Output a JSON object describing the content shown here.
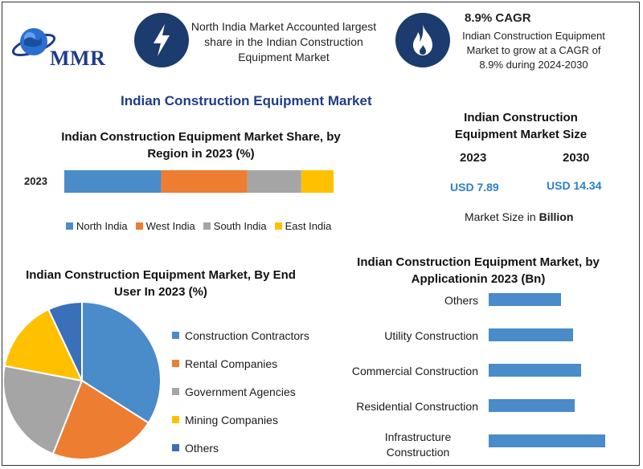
{
  "brand": {
    "logo_text": "MMR"
  },
  "header": {
    "region_text": "North India Market Accounted largest share in the Indian Construction Equipment Market",
    "cagr_title": "8.9% CAGR",
    "cagr_text": "Indian Construction Equipment Market to grow at a CAGR of 8.9% during 2024-2030",
    "icons": [
      "lightning-icon",
      "flame-icon"
    ]
  },
  "main_title": "Indian Construction Equipment Market",
  "market_size": {
    "title": "Indian Construction Equipment Market Size",
    "years": [
      "2023",
      "2030"
    ],
    "values": [
      "USD 7.89",
      "USD 14.34"
    ],
    "footnote_prefix": "Market Size in ",
    "footnote_unit": "Billion"
  },
  "colors": {
    "blue": "#4a8bc9",
    "orange": "#ed7d31",
    "gray": "#a5a5a5",
    "yellow": "#ffc000",
    "darkblue": "#3a6fb9",
    "bar": "#4a8bc9"
  },
  "chart_data": [
    {
      "type": "bar",
      "stacked": true,
      "orientation": "horizontal",
      "title": "Indian Construction Equipment Market Share, by Region in 2023 (%)",
      "categories": [
        "2023"
      ],
      "series": [
        {
          "name": "North India",
          "values": [
            36
          ]
        },
        {
          "name": "West India",
          "values": [
            32
          ]
        },
        {
          "name": "South India",
          "values": [
            20
          ]
        },
        {
          "name": "East India",
          "values": [
            12
          ]
        }
      ],
      "legend": "bottom"
    },
    {
      "type": "pie",
      "title": "Indian Construction Equipment Market, By End User In 2023 (%)",
      "labels": [
        "Construction Contractors",
        "Rental Companies",
        "Government Agencies",
        "Mining Companies",
        "Others"
      ],
      "values": [
        34,
        22,
        22,
        15,
        7
      ],
      "legend": "right"
    },
    {
      "type": "bar",
      "orientation": "horizontal",
      "title": "Indian Construction Equipment Market, by Applicationin 2023 (Bn)",
      "categories": [
        "Others",
        "Utility Construction",
        "Commercial Construction",
        "Residential Construction",
        "Infrastructure Construction"
      ],
      "values": [
        0.9,
        1.05,
        1.15,
        1.07,
        1.45
      ]
    }
  ]
}
